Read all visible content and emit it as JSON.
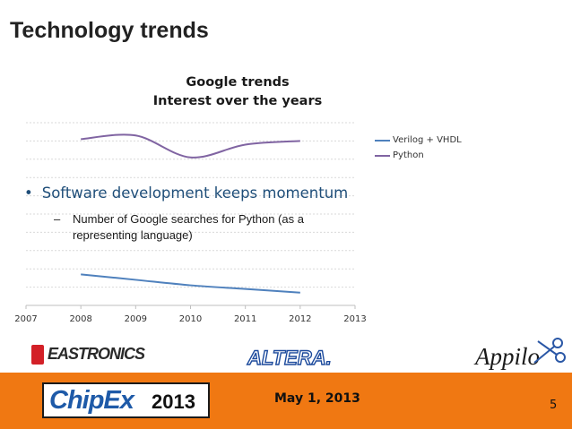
{
  "slide": {
    "title": "Technology trends",
    "bullet": "Software development keeps momentum",
    "sub_bullet": "Number of Google searches for Python (as a representing language)",
    "date": "May 1, 2013",
    "page_number": "5"
  },
  "logos": {
    "eastronics": "EASTRONICS",
    "altera": "ALTERA.",
    "appilo": "Appilo",
    "chipex": "ChipEx",
    "chipex_year": "2013"
  },
  "colors": {
    "footer": "#f07812",
    "verilog": "#4f81bd",
    "python": "#8064a2",
    "bullet_text": "#1f4e79"
  },
  "chart_data": {
    "type": "line",
    "title_line1": "Google trends",
    "title_line2": "Interest over the years",
    "x": [
      2008,
      2009,
      2010,
      2011,
      2012
    ],
    "x_ticks": [
      "2007",
      "2008",
      "2009",
      "2010",
      "2011",
      "2012",
      "2013"
    ],
    "xlim": [
      2007,
      2013
    ],
    "ylim": [
      0,
      100
    ],
    "series": [
      {
        "name": "Verilog + VHDL",
        "values": [
          17,
          14,
          11,
          9,
          7
        ]
      },
      {
        "name": "Python",
        "values": [
          91,
          93,
          81,
          88,
          90
        ]
      }
    ],
    "grid": true,
    "legend_position": "right"
  }
}
